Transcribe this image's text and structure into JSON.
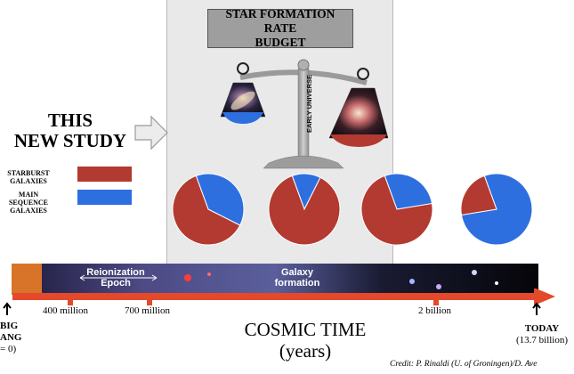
{
  "title": {
    "line1": "STAR FORMATION RATE",
    "line2": "BUDGET"
  },
  "scale_label": "EARLY UNIVERSE",
  "study_label": {
    "line1": "THIS",
    "line2": "NEW STUDY"
  },
  "legend": {
    "starburst": {
      "line1": "STARBURST",
      "line2": "GALAXIES",
      "color": "#b33a30"
    },
    "main_sequence": {
      "line1": "MAIN SEQUENCE",
      "line2": "GALAXIES",
      "color": "#2e6fe0"
    }
  },
  "pies": [
    {
      "starburst_fraction": 0.62,
      "main_sequence_fraction": 0.38
    },
    {
      "starburst_fraction": 0.87,
      "main_sequence_fraction": 0.13
    },
    {
      "starburst_fraction": 0.72,
      "main_sequence_fraction": 0.28
    },
    {
      "starburst_fraction": 0.22,
      "main_sequence_fraction": 0.78
    }
  ],
  "timeline": {
    "reionization": {
      "line1": "Reionization",
      "line2": "Epoch"
    },
    "galaxy_formation": {
      "line1": "Galaxy",
      "line2": "formation"
    },
    "ticks": [
      "400 million",
      "700 million",
      "2 billion"
    ],
    "axis_title": {
      "line1": "COSMIC TIME",
      "line2": "(years)"
    },
    "big_bang": {
      "line1": "BIG",
      "line2": "ANG",
      "line3": "= 0)"
    },
    "today": {
      "line1": "TODAY",
      "line2": "(13.7 billion)"
    }
  },
  "credit": "Credit: P. Rinaldi (U. of Groningen)/D. Ave"
}
